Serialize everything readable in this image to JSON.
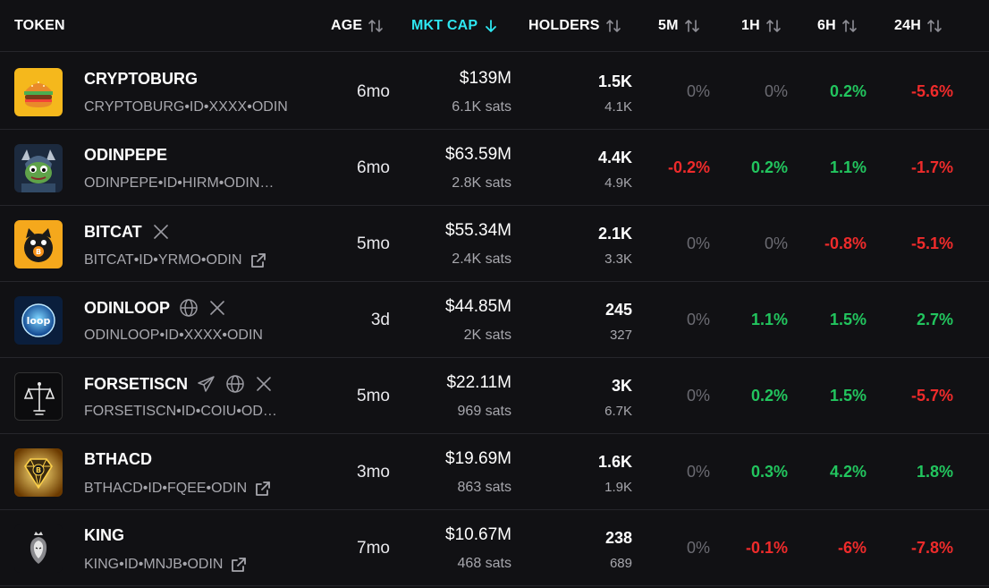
{
  "header": {
    "token": "TOKEN",
    "age": "AGE",
    "mkt_cap": "MKT CAP",
    "holders": "HOLDERS",
    "m5": "5M",
    "h1": "1H",
    "h6": "6H",
    "h24": "24H"
  },
  "colors": {
    "accent": "#2ee6f0",
    "positive": "#22c55e",
    "negative": "#ef2b2b",
    "neutral": "#6b6b72",
    "background": "#111114"
  },
  "rows": [
    {
      "name": "CRYPTOBURG",
      "id": "CRYPTOBURG•ID•XXXX•ODIN",
      "age": "6mo",
      "mkt_cap": "$139M",
      "sats": "6.1K sats",
      "holders": "1.5K",
      "holders_sub": "4.1K",
      "m5": "0%",
      "h1": "0%",
      "h6": "0.2%",
      "h24": "-5.6%",
      "icons": [],
      "external_link": false
    },
    {
      "name": "ODINPEPE",
      "id": "ODINPEPE•ID•HIRM•ODIN…",
      "age": "6mo",
      "mkt_cap": "$63.59M",
      "sats": "2.8K sats",
      "holders": "4.4K",
      "holders_sub": "4.9K",
      "m5": "-0.2%",
      "h1": "0.2%",
      "h6": "1.1%",
      "h24": "-1.7%",
      "icons": [],
      "external_link": false
    },
    {
      "name": "BITCAT",
      "id": "BITCAT•ID•YRMO•ODIN",
      "age": "5mo",
      "mkt_cap": "$55.34M",
      "sats": "2.4K sats",
      "holders": "2.1K",
      "holders_sub": "3.3K",
      "m5": "0%",
      "h1": "0%",
      "h6": "-0.8%",
      "h24": "-5.1%",
      "icons": [
        "x-icon"
      ],
      "external_link": true
    },
    {
      "name": "ODINLOOP",
      "id": "ODINLOOP•ID•XXXX•ODIN",
      "age": "3d",
      "mkt_cap": "$44.85M",
      "sats": "2K sats",
      "holders": "245",
      "holders_sub": "327",
      "m5": "0%",
      "h1": "1.1%",
      "h6": "1.5%",
      "h24": "2.7%",
      "icons": [
        "globe-icon",
        "x-icon"
      ],
      "external_link": false
    },
    {
      "name": "FORSETISCN",
      "id": "FORSETISCN•ID•COIU•OD…",
      "age": "5mo",
      "mkt_cap": "$22.11M",
      "sats": "969 sats",
      "holders": "3K",
      "holders_sub": "6.7K",
      "m5": "0%",
      "h1": "0.2%",
      "h6": "1.5%",
      "h24": "-5.7%",
      "icons": [
        "telegram-icon",
        "globe-icon",
        "x-icon"
      ],
      "external_link": false
    },
    {
      "name": "BTHACD",
      "id": "BTHACD•ID•FQEE•ODIN",
      "age": "3mo",
      "mkt_cap": "$19.69M",
      "sats": "863 sats",
      "holders": "1.6K",
      "holders_sub": "1.9K",
      "m5": "0%",
      "h1": "0.3%",
      "h6": "4.2%",
      "h24": "1.8%",
      "icons": [],
      "external_link": true
    },
    {
      "name": "KING",
      "id": "KING•ID•MNJB•ODIN",
      "age": "7mo",
      "mkt_cap": "$10.67M",
      "sats": "468 sats",
      "holders": "238",
      "holders_sub": "689",
      "m5": "0%",
      "h1": "-0.1%",
      "h6": "-6%",
      "h24": "-7.8%",
      "icons": [],
      "external_link": true
    }
  ]
}
